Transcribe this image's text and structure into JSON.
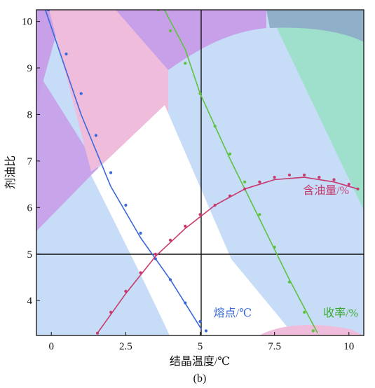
{
  "chart_data": {
    "type": "line",
    "subtitle": "(b)",
    "xlabel": "结晶温度/℃",
    "ylabel": "剂油比",
    "xlim": [
      -0.5,
      10.5
    ],
    "ylim": [
      3.25,
      10.25
    ],
    "x_ticks": [
      0,
      2.5,
      5,
      7.5,
      10
    ],
    "y_ticks": [
      4,
      5,
      6,
      7,
      8,
      9,
      10
    ],
    "reference_lines": {
      "x": 5.0,
      "y": 4.95
    },
    "series": [
      {
        "name": "熔点/℃",
        "color": "#3a68d8",
        "fit": [
          [
            -0.2,
            10.25
          ],
          [
            1.0,
            8.0
          ],
          [
            2.0,
            6.45
          ],
          [
            3.0,
            5.35
          ],
          [
            4.0,
            4.45
          ],
          [
            5.05,
            3.38
          ]
        ],
        "points": [
          [
            -0.1,
            10.25
          ],
          [
            0.5,
            9.3
          ],
          [
            1.0,
            8.45
          ],
          [
            1.5,
            7.55
          ],
          [
            2.0,
            6.75
          ],
          [
            2.5,
            6.05
          ],
          [
            3.0,
            5.45
          ],
          [
            3.5,
            4.9
          ],
          [
            4.0,
            4.45
          ],
          [
            4.5,
            3.95
          ],
          [
            5.0,
            3.55
          ],
          [
            5.2,
            3.35
          ]
        ]
      },
      {
        "name": "收率/%",
        "color": "#5ec240",
        "fit": [
          [
            3.8,
            10.25
          ],
          [
            4.5,
            9.4
          ],
          [
            5.0,
            8.45
          ],
          [
            6.0,
            7.05
          ],
          [
            7.0,
            5.75
          ],
          [
            8.0,
            4.45
          ],
          [
            8.95,
            3.3
          ]
        ],
        "points": [
          [
            3.6,
            10.25
          ],
          [
            4.0,
            9.8
          ],
          [
            4.5,
            9.1
          ],
          [
            5.0,
            8.45
          ],
          [
            5.5,
            7.75
          ],
          [
            6.0,
            7.15
          ],
          [
            6.5,
            6.55
          ],
          [
            7.0,
            5.85
          ],
          [
            7.5,
            5.15
          ],
          [
            8.0,
            4.4
          ],
          [
            8.5,
            3.75
          ],
          [
            8.8,
            3.35
          ]
        ]
      },
      {
        "name": "含油量/%",
        "color": "#c83a6e",
        "fit": [
          [
            1.55,
            3.3
          ],
          [
            2.5,
            4.15
          ],
          [
            3.5,
            4.95
          ],
          [
            4.5,
            5.55
          ],
          [
            5.5,
            6.05
          ],
          [
            6.5,
            6.4
          ],
          [
            7.5,
            6.6
          ],
          [
            8.5,
            6.65
          ],
          [
            9.5,
            6.55
          ],
          [
            10.3,
            6.4
          ]
        ],
        "points": [
          [
            1.55,
            3.3
          ],
          [
            2.0,
            3.75
          ],
          [
            2.5,
            4.2
          ],
          [
            3.0,
            4.6
          ],
          [
            3.5,
            5.0
          ],
          [
            4.0,
            5.3
          ],
          [
            4.5,
            5.6
          ],
          [
            5.0,
            5.85
          ],
          [
            5.5,
            6.05
          ],
          [
            6.0,
            6.25
          ],
          [
            6.5,
            6.4
          ],
          [
            7.0,
            6.55
          ],
          [
            7.5,
            6.65
          ],
          [
            8.0,
            6.7
          ],
          [
            8.5,
            6.7
          ],
          [
            9.0,
            6.65
          ],
          [
            9.5,
            6.6
          ],
          [
            10.0,
            6.5
          ],
          [
            10.3,
            6.4
          ]
        ]
      }
    ]
  }
}
